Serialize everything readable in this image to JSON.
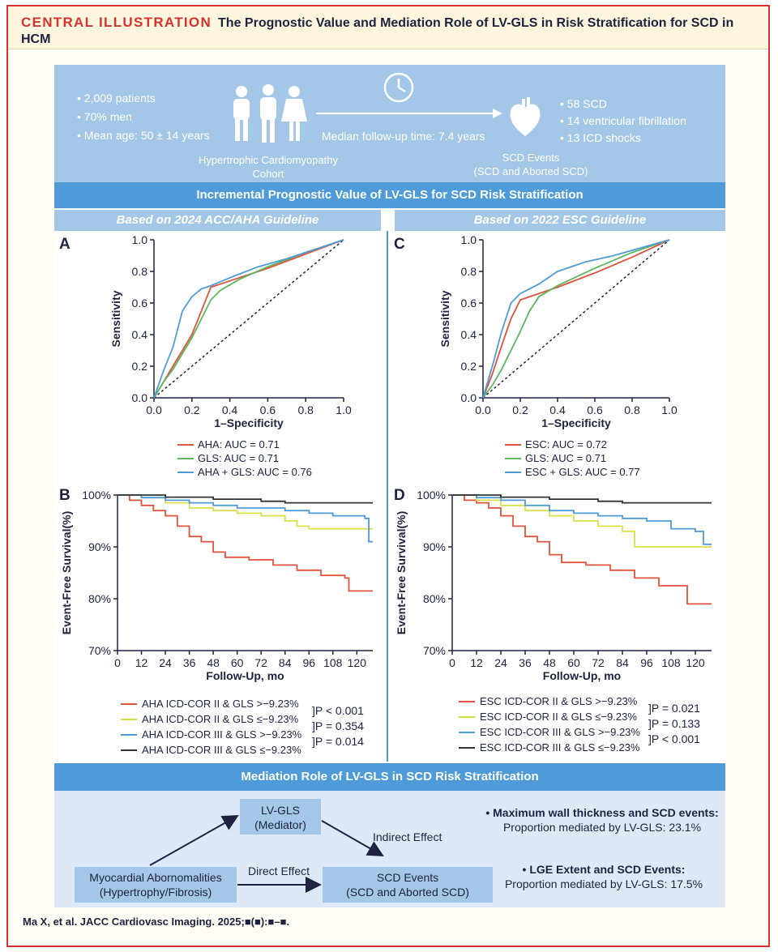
{
  "header": {
    "label": "CENTRAL ILLUSTRATION",
    "title": "The Prognostic Value and Mediation Role of LV-GLS in Risk Stratification for SCD in HCM"
  },
  "cohort": {
    "stats": [
      "• 2,009 patients",
      "• 70% men",
      "• Mean age: 50 ± 14 years"
    ],
    "caption": [
      "Hypertrophic Cardiomyopathy",
      "Cohort"
    ],
    "followup": "Median follow-up time: 7.4 years",
    "events": [
      "• 58 SCD",
      "• 14 ventricular fibrillation",
      "• 13 ICD shocks"
    ],
    "events_caption": [
      "SCD Events",
      "(SCD and Aborted SCD)"
    ]
  },
  "section1_title": "Incremental Prognostic Value of LV-GLS for SCD Risk Stratification",
  "left_subtitle": "Based on 2024 ACC/AHA Guideline",
  "right_subtitle": "Based on 2022 ESC Guideline",
  "mediation": {
    "title": "Mediation Role of LV-GLS in SCD Risk Stratification",
    "mediator": [
      "LV-GLS",
      "(Mediator)"
    ],
    "exposure": [
      "Myocardial Abornomalities",
      "(Hypertrophy/Fibrosis)"
    ],
    "outcome": [
      "SCD Events",
      "(SCD and Aborted SCD)"
    ],
    "indirect": "Indirect Effect",
    "direct": "Direct Effect",
    "finding1": [
      "• Maximum wall thickness and SCD events:",
      "Proportion mediated by LV-GLS: 23.1%"
    ],
    "finding2": [
      "• LGE Extent and SCD Events:",
      "Proportion mediated by LV-GLS: 17.5%"
    ]
  },
  "citation": "Ma X, et al. JACC Cardiovasc Imaging. 2025;■(■):■–■.",
  "colors": {
    "red": "#e0533e",
    "green": "#5cb85c",
    "blue": "#4f9bd9",
    "yellow": "#d9e04a",
    "black": "#333333"
  },
  "chart_data": [
    {
      "panel": "A",
      "type": "line",
      "xlabel": "1–Specificity",
      "ylabel": "Sensitivity",
      "xlim": [
        0,
        1
      ],
      "ylim": [
        0,
        1
      ],
      "ticks": [
        0.0,
        0.2,
        0.4,
        0.6,
        0.8,
        1.0
      ],
      "tick_labels": [
        "0.0",
        "0.2",
        "0.4",
        "0.6",
        "0.8",
        "1.0"
      ],
      "series": [
        {
          "name": "AHA: AUC = 0.71",
          "color": "#e0533e",
          "points": [
            [
              0,
              0
            ],
            [
              0.05,
              0.1
            ],
            [
              0.1,
              0.2
            ],
            [
              0.15,
              0.3
            ],
            [
              0.2,
              0.4
            ],
            [
              0.25,
              0.55
            ],
            [
              0.3,
              0.7
            ],
            [
              0.4,
              0.74
            ],
            [
              0.6,
              0.82
            ],
            [
              0.8,
              0.91
            ],
            [
              1,
              1
            ]
          ]
        },
        {
          "name": "GLS: AUC = 0.71",
          "color": "#5cb85c",
          "points": [
            [
              0,
              0
            ],
            [
              0.05,
              0.1
            ],
            [
              0.1,
              0.18
            ],
            [
              0.15,
              0.28
            ],
            [
              0.2,
              0.38
            ],
            [
              0.25,
              0.5
            ],
            [
              0.3,
              0.62
            ],
            [
              0.35,
              0.68
            ],
            [
              0.45,
              0.75
            ],
            [
              0.6,
              0.83
            ],
            [
              0.8,
              0.92
            ],
            [
              1,
              1
            ]
          ]
        },
        {
          "name": "AHA + GLS: AUC = 0.76",
          "color": "#4f9bd9",
          "points": [
            [
              0,
              0
            ],
            [
              0.05,
              0.17
            ],
            [
              0.1,
              0.32
            ],
            [
              0.15,
              0.55
            ],
            [
              0.2,
              0.64
            ],
            [
              0.25,
              0.69
            ],
            [
              0.3,
              0.71
            ],
            [
              0.4,
              0.76
            ],
            [
              0.55,
              0.83
            ],
            [
              0.7,
              0.88
            ],
            [
              0.85,
              0.94
            ],
            [
              1,
              1
            ]
          ]
        }
      ]
    },
    {
      "panel": "C",
      "type": "line",
      "xlabel": "1–Specificity",
      "ylabel": "Sensitivity",
      "xlim": [
        0,
        1
      ],
      "ylim": [
        0,
        1
      ],
      "ticks": [
        0.0,
        0.2,
        0.4,
        0.6,
        0.8,
        1.0
      ],
      "tick_labels": [
        "0.0",
        "0.2",
        "0.4",
        "0.6",
        "0.8",
        "1.0"
      ],
      "series": [
        {
          "name": "ESC: AUC = 0.72",
          "color": "#e0533e",
          "points": [
            [
              0,
              0
            ],
            [
              0.05,
              0.15
            ],
            [
              0.1,
              0.33
            ],
            [
              0.15,
              0.5
            ],
            [
              0.2,
              0.62
            ],
            [
              0.4,
              0.7
            ],
            [
              0.6,
              0.79
            ],
            [
              0.8,
              0.89
            ],
            [
              1,
              1
            ]
          ]
        },
        {
          "name": "GLS: AUC = 0.71",
          "color": "#5cb85c",
          "points": [
            [
              0,
              0
            ],
            [
              0.05,
              0.08
            ],
            [
              0.1,
              0.18
            ],
            [
              0.15,
              0.3
            ],
            [
              0.2,
              0.42
            ],
            [
              0.25,
              0.55
            ],
            [
              0.3,
              0.64
            ],
            [
              0.4,
              0.71
            ],
            [
              0.6,
              0.82
            ],
            [
              0.8,
              0.92
            ],
            [
              1,
              1
            ]
          ]
        },
        {
          "name": "ESC + GLS: AUC = 0.77",
          "color": "#4f9bd9",
          "points": [
            [
              0,
              0
            ],
            [
              0.05,
              0.2
            ],
            [
              0.1,
              0.42
            ],
            [
              0.15,
              0.6
            ],
            [
              0.2,
              0.66
            ],
            [
              0.3,
              0.72
            ],
            [
              0.4,
              0.8
            ],
            [
              0.55,
              0.86
            ],
            [
              0.7,
              0.9
            ],
            [
              0.85,
              0.95
            ],
            [
              1,
              1
            ]
          ]
        }
      ]
    },
    {
      "panel": "B",
      "type": "line",
      "xlabel": "Follow-Up, mo",
      "ylabel": "Event-Free Survival(%)",
      "xlim": [
        0,
        128
      ],
      "ylim": [
        70,
        100
      ],
      "xticks": [
        0,
        12,
        24,
        36,
        48,
        60,
        72,
        84,
        96,
        108,
        120
      ],
      "yticks": [
        70,
        80,
        90,
        100
      ],
      "ytick_labels": [
        "70%",
        "80%",
        "90%",
        "100%"
      ],
      "series": [
        {
          "name": "AHA ICD-COR II & GLS >−9.23%",
          "color": "#e0533e",
          "points": [
            [
              0,
              100
            ],
            [
              6,
              99
            ],
            [
              12,
              98
            ],
            [
              18,
              97
            ],
            [
              24,
              96
            ],
            [
              30,
              94
            ],
            [
              36,
              92
            ],
            [
              42,
              91
            ],
            [
              48,
              89
            ],
            [
              54,
              88
            ],
            [
              66,
              87.5
            ],
            [
              78,
              86.5
            ],
            [
              90,
              85.5
            ],
            [
              102,
              84.5
            ],
            [
              114,
              84
            ],
            [
              116,
              81.5
            ],
            [
              128,
              81.5
            ]
          ]
        },
        {
          "name": "AHA ICD-COR II & GLS ≤−9.23%",
          "color": "#d9e04a",
          "points": [
            [
              0,
              100
            ],
            [
              12,
              99.5
            ],
            [
              24,
              98.5
            ],
            [
              36,
              97.5
            ],
            [
              48,
              97
            ],
            [
              60,
              96.5
            ],
            [
              72,
              96
            ],
            [
              84,
              95
            ],
            [
              90,
              94
            ],
            [
              96,
              93.5
            ],
            [
              120,
              93.5
            ],
            [
              128,
              93.5
            ]
          ]
        },
        {
          "name": "AHA ICD-COR III & GLS >−9.23%",
          "color": "#4f9bd9",
          "points": [
            [
              0,
              100
            ],
            [
              12,
              99.5
            ],
            [
              24,
              99
            ],
            [
              36,
              98.5
            ],
            [
              48,
              98
            ],
            [
              60,
              97.5
            ],
            [
              84,
              97
            ],
            [
              96,
              96.5
            ],
            [
              108,
              96
            ],
            [
              124,
              95.5
            ],
            [
              126,
              91
            ],
            [
              128,
              91
            ]
          ]
        },
        {
          "name": "AHA ICD-COR III & GLS ≤−9.23%",
          "color": "#333333",
          "points": [
            [
              0,
              100
            ],
            [
              24,
              99.6
            ],
            [
              48,
              99.2
            ],
            [
              72,
              98.8
            ],
            [
              84,
              98.5
            ],
            [
              128,
              98.5
            ]
          ]
        }
      ],
      "pvalues": [
        "]P < 0.001",
        "]P = 0.354",
        "]P = 0.014"
      ]
    },
    {
      "panel": "D",
      "type": "line",
      "xlabel": "Follow-Up, mo",
      "ylabel": "Event-Free Survival(%)",
      "xlim": [
        0,
        128
      ],
      "ylim": [
        70,
        100
      ],
      "xticks": [
        0,
        12,
        24,
        36,
        48,
        60,
        72,
        84,
        96,
        108,
        120
      ],
      "yticks": [
        70,
        80,
        90,
        100
      ],
      "ytick_labels": [
        "70%",
        "80%",
        "90%",
        "100%"
      ],
      "series": [
        {
          "name": "ESC ICD-COR II & GLS >−9.23%",
          "color": "#e0533e",
          "points": [
            [
              0,
              100
            ],
            [
              6,
              99
            ],
            [
              12,
              98.5
            ],
            [
              18,
              97.5
            ],
            [
              24,
              96
            ],
            [
              30,
              94
            ],
            [
              36,
              92
            ],
            [
              42,
              91
            ],
            [
              48,
              88.5
            ],
            [
              54,
              87
            ],
            [
              66,
              86.5
            ],
            [
              78,
              85.5
            ],
            [
              90,
              84
            ],
            [
              102,
              82.5
            ],
            [
              114,
              82.5
            ],
            [
              116,
              79
            ],
            [
              128,
              79
            ]
          ]
        },
        {
          "name": "ESC ICD-COR II & GLS ≤−9.23%",
          "color": "#d9e04a",
          "points": [
            [
              0,
              100
            ],
            [
              12,
              99
            ],
            [
              24,
              98
            ],
            [
              36,
              97
            ],
            [
              48,
              96
            ],
            [
              60,
              95
            ],
            [
              72,
              94
            ],
            [
              84,
              93
            ],
            [
              90,
              90
            ],
            [
              128,
              90
            ]
          ]
        },
        {
          "name": "ESC ICD-COR III & GLS >−9.23%",
          "color": "#4f9bd9",
          "points": [
            [
              0,
              100
            ],
            [
              12,
              99.5
            ],
            [
              24,
              99
            ],
            [
              36,
              98
            ],
            [
              48,
              97
            ],
            [
              60,
              96.5
            ],
            [
              72,
              96
            ],
            [
              84,
              95.5
            ],
            [
              96,
              95
            ],
            [
              108,
              93.5
            ],
            [
              120,
              93
            ],
            [
              124,
              90.5
            ],
            [
              128,
              90.5
            ]
          ]
        },
        {
          "name": "ESC ICD-COR III & GLS ≤−9.23%",
          "color": "#333333",
          "points": [
            [
              0,
              100
            ],
            [
              24,
              99.6
            ],
            [
              48,
              99.2
            ],
            [
              72,
              98.8
            ],
            [
              84,
              98.5
            ],
            [
              128,
              98.5
            ]
          ]
        }
      ],
      "pvalues": [
        "]P = 0.021",
        "]P = 0.133",
        "]P < 0.001"
      ]
    }
  ]
}
